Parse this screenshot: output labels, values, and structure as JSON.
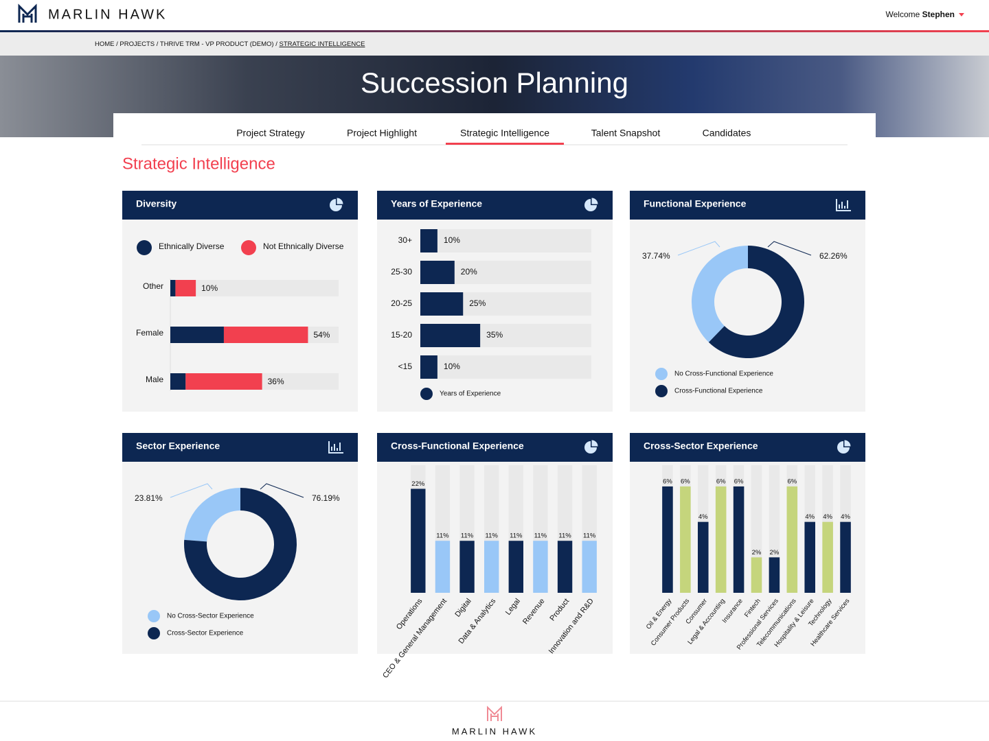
{
  "header": {
    "logo": "MARLIN HAWK",
    "welcome": "Welcome",
    "user": "Stephen"
  },
  "breadcrumb": {
    "path": "HOME / PROJECTS / THRIVE TRM - VP PRODUCT (DEMO) / ",
    "current": "STRATEGIC INTELLIGENCE"
  },
  "banner": {
    "title": "Succession Planning"
  },
  "tabs": [
    {
      "label": "Project Strategy"
    },
    {
      "label": "Project Highlight"
    },
    {
      "label": "Strategic Intelligence",
      "active": true
    },
    {
      "label": "Talent Snapshot"
    },
    {
      "label": "Candidates"
    }
  ],
  "section_title": "Strategic Intelligence",
  "chart_data": [
    {
      "type": "stacked_hbar",
      "title": "Diversity",
      "categories": [
        "Other",
        "Female",
        "Male"
      ],
      "series": [
        {
          "name": "Ethnically Diverse",
          "color": "#0d2752",
          "values": [
            2,
            21,
            6
          ]
        },
        {
          "name": "Not Ethnically Diverse",
          "color": "#f2404f",
          "values": [
            8,
            33,
            30
          ]
        }
      ],
      "totals": [
        10,
        54,
        36
      ],
      "total_labels": [
        "10%",
        "54%",
        "36%"
      ],
      "xlim": [
        0,
        66
      ]
    },
    {
      "type": "hbar",
      "title": "Years of Experience",
      "categories": [
        "30+",
        "25-30",
        "20-25",
        "15-20",
        "<15"
      ],
      "series": [
        {
          "name": "Years of Experience",
          "color": "#0d2752",
          "values": [
            10,
            20,
            25,
            35,
            10
          ],
          "value_labels": [
            "10%",
            "20%",
            "25%",
            "35%",
            "10%"
          ]
        }
      ],
      "xlim": [
        0,
        100
      ]
    },
    {
      "type": "donut",
      "title": "Functional Experience",
      "categories": [
        "No Cross-Functional Experience",
        "Cross-Functional Experience"
      ],
      "values": [
        37.74,
        62.26
      ],
      "value_labels": [
        "37.74%",
        "62.26%"
      ],
      "colors": [
        "#99c7f7",
        "#0d2752"
      ]
    },
    {
      "type": "donut",
      "title": "Sector Experience",
      "categories": [
        "No Cross-Sector Experience",
        "Cross-Sector Experience"
      ],
      "values": [
        23.81,
        76.19
      ],
      "value_labels": [
        "23.81%",
        "76.19%"
      ],
      "colors": [
        "#99c7f7",
        "#0d2752"
      ]
    },
    {
      "type": "vbar",
      "title": "Cross-Functional Experience",
      "categories": [
        "Operations",
        "CEO & General Management",
        "Digital",
        "Data & Analytics",
        "Legal",
        "Revenue",
        "Product",
        "Innovation and R&D"
      ],
      "values": [
        22,
        11,
        11,
        11,
        11,
        11,
        11,
        11
      ],
      "value_labels": [
        "22%",
        "11%",
        "11%",
        "11%",
        "11%",
        "11%",
        "11%",
        "11%"
      ],
      "colors": [
        "#0d2752",
        "#99c7f7",
        "#0d2752",
        "#99c7f7",
        "#0d2752",
        "#99c7f7",
        "#0d2752",
        "#99c7f7"
      ],
      "ylim": [
        0,
        27
      ]
    },
    {
      "type": "vbar",
      "title": "Cross-Sector Experience",
      "categories": [
        "Oil & Energy",
        "Consumer Products",
        "Consumer",
        "Legal & Accounting",
        "Insurance",
        "Fintech",
        "Professional Services",
        "Telecommunications",
        "Hospitality & Leisure",
        "Technology",
        "Healthcare Services"
      ],
      "values": [
        6,
        6,
        4,
        6,
        6,
        2,
        2,
        6,
        4,
        4,
        4
      ],
      "value_labels": [
        "6%",
        "6%",
        "4%",
        "6%",
        "6%",
        "2%",
        "2%",
        "6%",
        "4%",
        "4%",
        "4%"
      ],
      "colors": [
        "#0d2752",
        "#c5d57c",
        "#0d2752",
        "#c5d57c",
        "#0d2752",
        "#c5d57c",
        "#0d2752",
        "#c5d57c",
        "#0d2752",
        "#c5d57c",
        "#0d2752"
      ],
      "ylim": [
        0,
        7.2
      ]
    }
  ],
  "footer": {
    "logo": "MARLIN HAWK"
  }
}
